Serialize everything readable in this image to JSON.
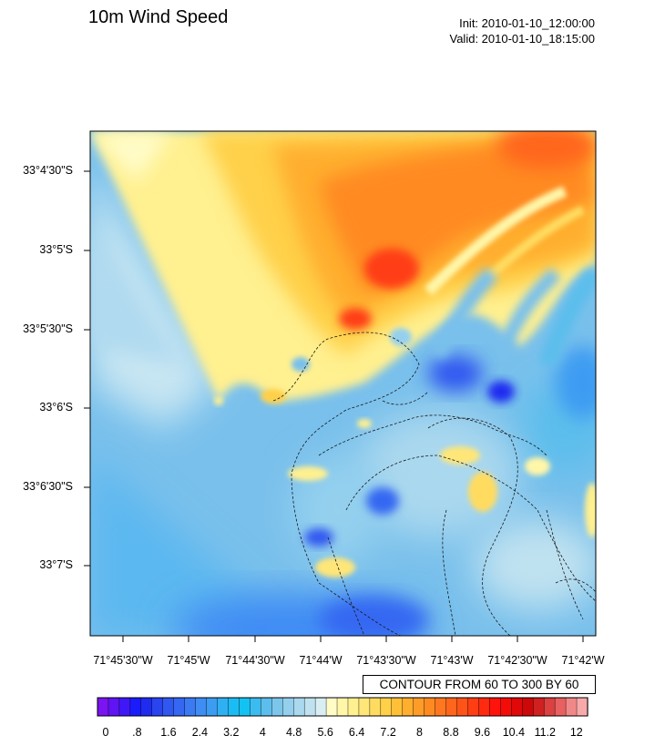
{
  "title": "10m Wind Speed",
  "init": "Init: 2010-01-10_12:00:00",
  "valid": "Valid: 2010-01-10_18:15:00",
  "latitude_labels": [
    "33°4'30\"S",
    "33°5'S",
    "33°5'30\"S",
    "33°6'S",
    "33°6'30\"S",
    "33°7'S"
  ],
  "longitude_labels": [
    "71°45'30\"W",
    "71°45'W",
    "71°44'30\"W",
    "71°44'W",
    "71°43'30\"W",
    "71°43'W",
    "71°42'30\"W",
    "71°42'W"
  ],
  "contour_info": "CONTOUR FROM 60 TO 300 BY 60",
  "colorbar": {
    "min": 0,
    "max": 12.4,
    "step": 0.2,
    "labels": [
      "0",
      ".8",
      "1.6",
      "2.4",
      "3.2",
      "4",
      "4.8",
      "5.6",
      "6.4",
      "7.2",
      "8",
      "8.8",
      "9.6",
      "10.4",
      "11.2",
      "12"
    ],
    "colors": [
      "#7a14f0",
      "#5f14f3",
      "#4018f8",
      "#1a1cfb",
      "#1f2cf0",
      "#2a44ef",
      "#3058f0",
      "#3567f2",
      "#3b7af2",
      "#3f8cf4",
      "#3c9cf2",
      "#2fb0f2",
      "#1bbcf4",
      "#13c2f3",
      "#3bbcf0",
      "#5bbeec",
      "#7cc6ec",
      "#94d0ee",
      "#aad8ee",
      "#c0e2f0",
      "#d8eef2",
      "#fffcc8",
      "#fff6a8",
      "#fff090",
      "#ffe678",
      "#ffdc60",
      "#ffd048",
      "#ffc038",
      "#ffae2e",
      "#ff9c28",
      "#ff8a22",
      "#ff7820",
      "#ff661c",
      "#ff5418",
      "#ff3e14",
      "#ff2a10",
      "#ff140c",
      "#f40c08",
      "#e00808",
      "#cc0808",
      "#d02020",
      "#dc4040",
      "#e86060",
      "#f08888",
      "#f8aaaa"
    ]
  }
}
